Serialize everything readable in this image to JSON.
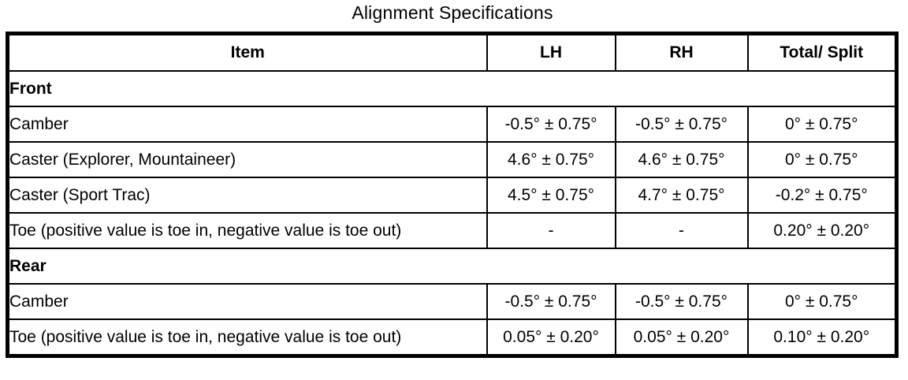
{
  "title": "Alignment Specifications",
  "table": {
    "columns": [
      "Item",
      "LH",
      "RH",
      "Total/ Split"
    ],
    "sections": [
      {
        "name": "Front",
        "rows": [
          {
            "item": "Camber",
            "lh": "-0.5° ± 0.75°",
            "rh": "-0.5° ± 0.75°",
            "total": "0° ± 0.75°"
          },
          {
            "item": "Caster (Explorer, Mountaineer)",
            "lh": "4.6° ± 0.75°",
            "rh": "4.6° ± 0.75°",
            "total": "0° ± 0.75°"
          },
          {
            "item": "Caster (Sport Trac)",
            "lh": "4.5° ± 0.75°",
            "rh": "4.7° ± 0.75°",
            "total": "-0.2° ± 0.75°"
          },
          {
            "item": "Toe (positive value is toe in, negative value is toe out)",
            "lh": "-",
            "rh": "-",
            "total": "0.20° ± 0.20°"
          }
        ]
      },
      {
        "name": "Rear",
        "rows": [
          {
            "item": "Camber",
            "lh": "-0.5° ± 0.75°",
            "rh": "-0.5° ± 0.75°",
            "total": "0° ± 0.75°"
          },
          {
            "item": "Toe (positive value is toe in, negative value is toe out)",
            "lh": "0.05° ± 0.20°",
            "rh": "0.05° ± 0.20°",
            "total": "0.10° ± 0.20°"
          }
        ]
      }
    ]
  }
}
